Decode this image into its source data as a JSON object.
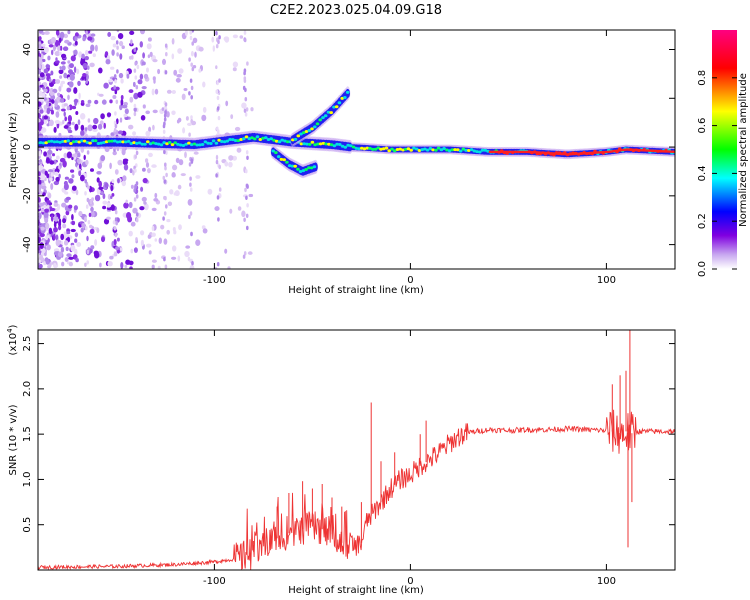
{
  "figure_title": "C2E2.2023.025.04.09.G18",
  "chart_data": [
    {
      "type": "heatmap",
      "title": "",
      "xlabel": "Height of straight line (km)",
      "ylabel": "Frequency (Hz)",
      "xlim": [
        -190,
        135
      ],
      "ylim": [
        -50,
        48
      ],
      "x_ticks": [
        -100,
        0,
        100
      ],
      "y_ticks": [
        -40,
        -20,
        0,
        20,
        40
      ],
      "grid": false,
      "colorbar": {
        "label": "Normalized spectral amplitude",
        "range": [
          0.0,
          1.0
        ],
        "ticks": [
          0.0,
          0.2,
          0.4,
          0.6,
          0.8
        ],
        "colors": [
          "#ffffff",
          "#c8a8f0",
          "#8000e0",
          "#0000ff",
          "#00ffff",
          "#00ff00",
          "#ffff00",
          "#ff0000",
          "#ff0080"
        ]
      },
      "ridges": [
        {
          "name": "main",
          "points": [
            [
              -190,
              2
            ],
            [
              -150,
              2
            ],
            [
              -110,
              1
            ],
            [
              -90,
              3
            ],
            [
              -80,
              4
            ],
            [
              -60,
              2
            ],
            [
              -40,
              1
            ],
            [
              -30,
              0
            ],
            [
              -10,
              -1
            ],
            [
              0,
              -1
            ],
            [
              20,
              -1
            ],
            [
              40,
              -2
            ],
            [
              60,
              -2
            ],
            [
              80,
              -3
            ],
            [
              100,
              -2
            ],
            [
              110,
              -1
            ],
            [
              135,
              -2
            ]
          ]
        },
        {
          "name": "upper-branch",
          "points": [
            [
              -60,
              3
            ],
            [
              -50,
              8
            ],
            [
              -40,
              15
            ],
            [
              -32,
              22
            ]
          ]
        },
        {
          "name": "lower-branch",
          "points": [
            [
              -70,
              -2
            ],
            [
              -62,
              -7
            ],
            [
              -55,
              -10
            ],
            [
              -48,
              -8
            ]
          ]
        }
      ]
    },
    {
      "type": "line",
      "title": "",
      "xlabel": "Height of straight line (km)",
      "ylabel": "SNR (10 * v/v)",
      "y_multiplier": "(x10",
      "y_multiplier_exp": "4",
      "y_multiplier_close": ")",
      "xlim": [
        -190,
        135
      ],
      "ylim": [
        0,
        2.65
      ],
      "x_ticks": [
        -100,
        0,
        100
      ],
      "y_ticks": [
        0.5,
        1.0,
        1.5,
        2.0,
        2.5
      ],
      "grid": false,
      "series": [
        {
          "color": "#ee3333",
          "x": [
            -190,
            -150,
            -120,
            -100,
            -90,
            -85,
            -80,
            -75,
            -70,
            -65,
            -60,
            -55,
            -50,
            -45,
            -40,
            -35,
            -30,
            -25,
            -22,
            -20,
            -15,
            -10,
            -5,
            0,
            5,
            10,
            15,
            20,
            25,
            30,
            40,
            50,
            60,
            70,
            80,
            90,
            100,
            105,
            108,
            110,
            112,
            115,
            120,
            135
          ],
          "y": [
            0.03,
            0.04,
            0.06,
            0.09,
            0.12,
            0.15,
            0.2,
            0.27,
            0.33,
            0.38,
            0.42,
            0.45,
            0.48,
            0.45,
            0.4,
            0.3,
            0.25,
            0.3,
            0.55,
            0.6,
            0.75,
            0.9,
            1.0,
            1.05,
            1.15,
            1.22,
            1.3,
            1.4,
            1.48,
            1.52,
            1.55,
            1.54,
            1.55,
            1.55,
            1.56,
            1.55,
            1.54,
            1.52,
            1.5,
            1.53,
            1.5,
            1.53,
            1.53,
            1.53
          ]
        }
      ],
      "spikes": [
        {
          "x": -80,
          "y": 0.32
        },
        {
          "x": -68,
          "y": 0.7
        },
        {
          "x": -62,
          "y": 0.85
        },
        {
          "x": -55,
          "y": 0.98
        },
        {
          "x": -50,
          "y": 0.9
        },
        {
          "x": -45,
          "y": 0.95
        },
        {
          "x": -40,
          "y": 0.8
        },
        {
          "x": -35,
          "y": 0.7
        },
        {
          "x": -25,
          "y": 0.75
        },
        {
          "x": -20,
          "y": 1.85
        },
        {
          "x": -15,
          "y": 1.2
        },
        {
          "x": -8,
          "y": 1.3
        },
        {
          "x": 5,
          "y": 1.5
        },
        {
          "x": 8,
          "y": 1.65
        },
        {
          "x": 103,
          "y": 2.05
        },
        {
          "x": 107,
          "y": 2.15
        },
        {
          "x": 110,
          "y": 2.2
        },
        {
          "x": 112,
          "y": 2.65
        },
        {
          "x": 111,
          "y": 0.25
        },
        {
          "x": 113,
          "y": 0.75
        }
      ]
    }
  ]
}
